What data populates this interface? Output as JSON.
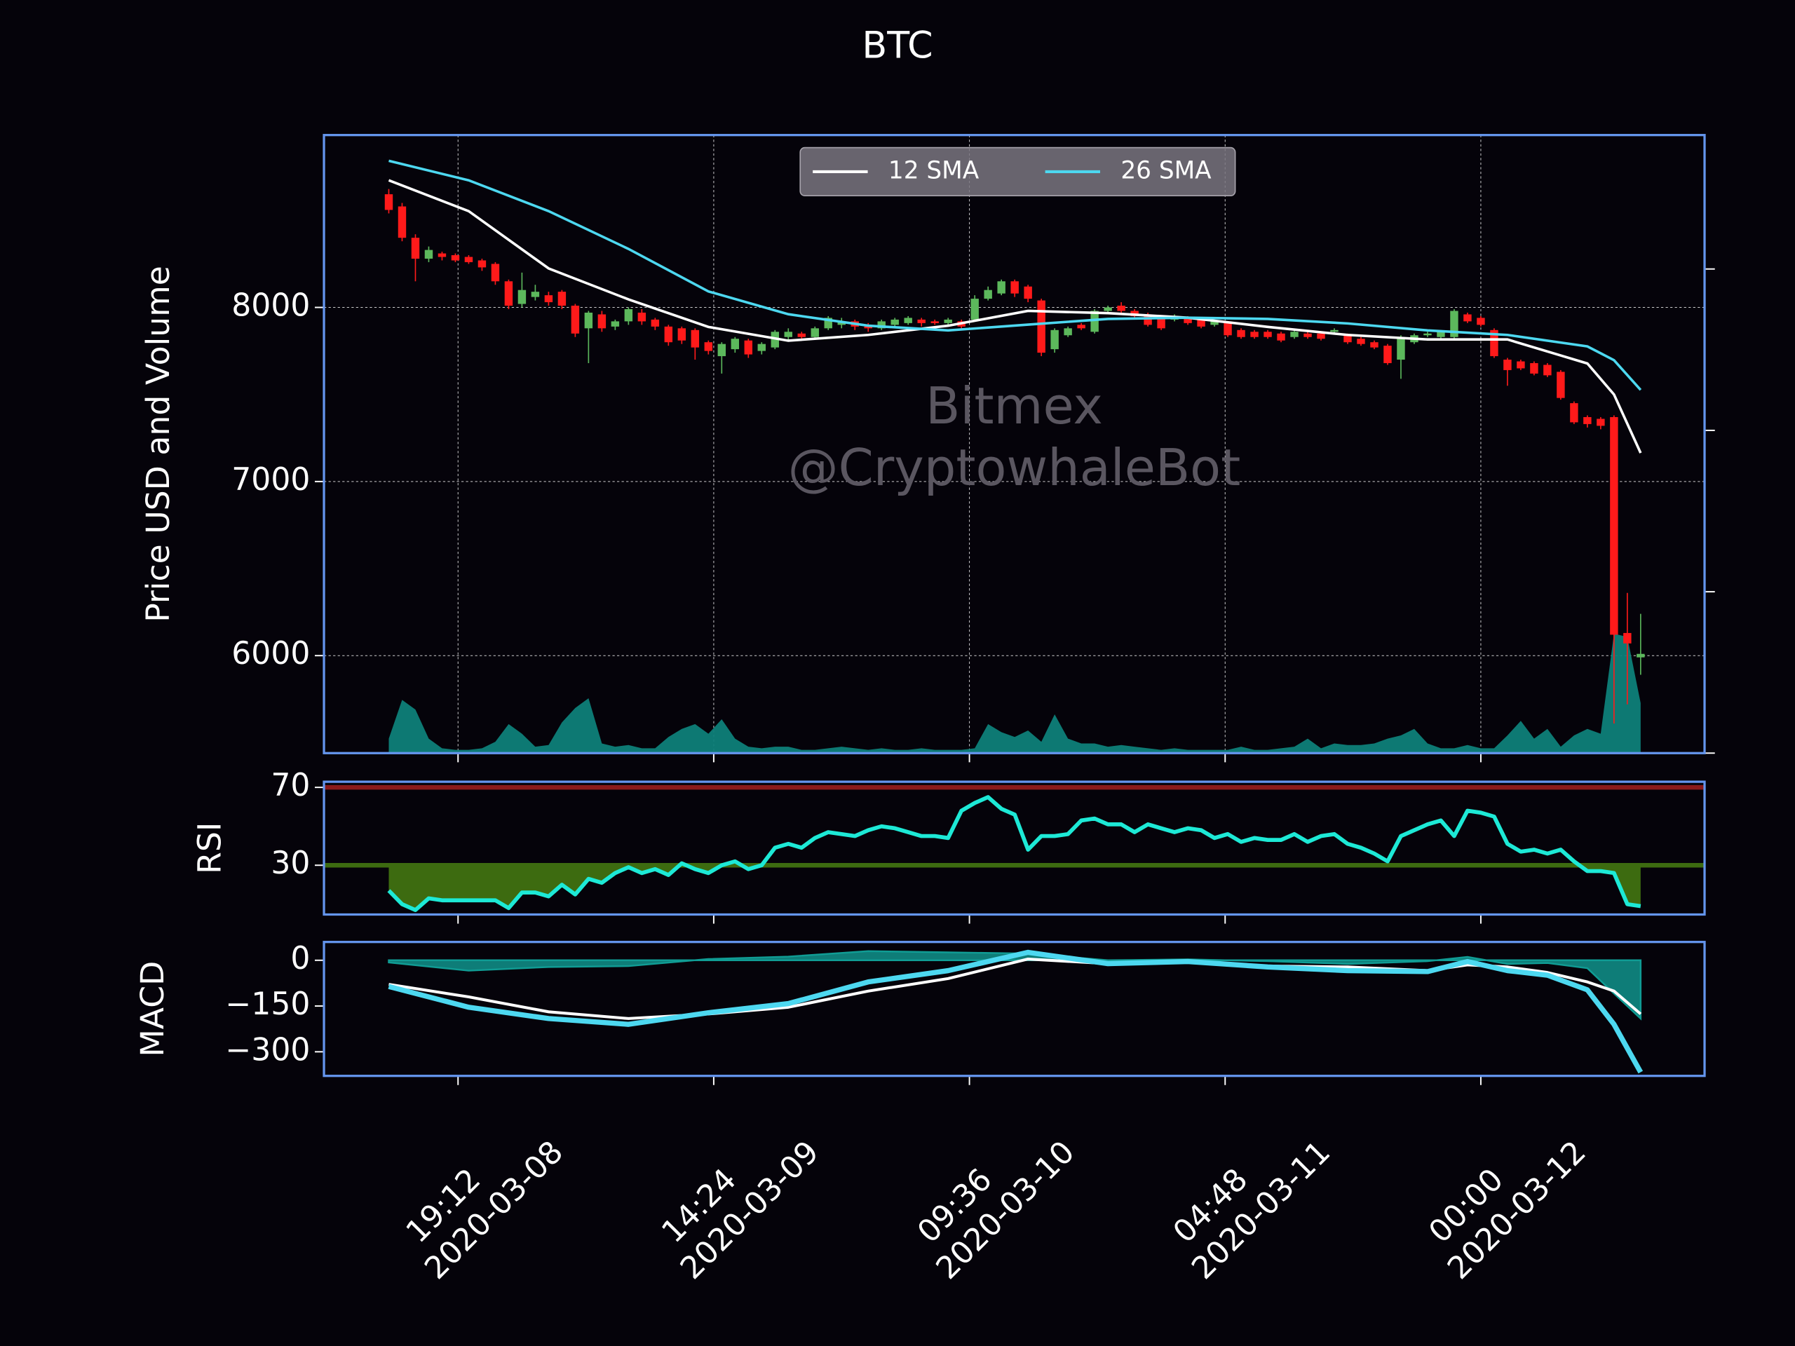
{
  "chart_data": {
    "type": "candlestick",
    "title": "BTC",
    "ylabel": "Price USD and Volume",
    "watermark": [
      "Bitmex",
      "@CryptowhaleBot"
    ],
    "xlim": [
      "2020-03-08 09:08",
      "2020-03-12 16:48"
    ],
    "xticks": [
      {
        "value": "2020-03-08 19:12",
        "label": [
          "19:12",
          "2020-03-08"
        ]
      },
      {
        "value": "2020-03-09 14:24",
        "label": [
          "14:24",
          "2020-03-09"
        ]
      },
      {
        "value": "2020-03-10 09:36",
        "label": [
          "09:36",
          "2020-03-10"
        ]
      },
      {
        "value": "2020-03-11 04:48",
        "label": [
          "04:48",
          "2020-03-11"
        ]
      },
      {
        "value": "2020-03-12 00:00",
        "label": [
          "00:00",
          "2020-03-12"
        ]
      }
    ],
    "ylim": [
      5440,
      8990
    ],
    "yticks": [
      6000,
      7000,
      8000
    ],
    "grid": true,
    "y2lim": [
      0,
      3.83
    ],
    "y2ticks": [
      0,
      1,
      2,
      3
    ],
    "up_color": "#5cb85c",
    "down_color": "#ff1a1a",
    "legend": "upper center",
    "x": [
      "2020-03-08 14:00",
      "2020-03-08 15:00",
      "2020-03-08 16:00",
      "2020-03-08 17:00",
      "2020-03-08 18:00",
      "2020-03-08 19:00",
      "2020-03-08 20:00",
      "2020-03-08 21:00",
      "2020-03-08 22:00",
      "2020-03-08 23:00",
      "2020-03-09 00:00",
      "2020-03-09 01:00",
      "2020-03-09 02:00",
      "2020-03-09 03:00",
      "2020-03-09 04:00",
      "2020-03-09 05:00",
      "2020-03-09 06:00",
      "2020-03-09 07:00",
      "2020-03-09 08:00",
      "2020-03-09 09:00",
      "2020-03-09 10:00",
      "2020-03-09 11:00",
      "2020-03-09 12:00",
      "2020-03-09 13:00",
      "2020-03-09 14:00",
      "2020-03-09 15:00",
      "2020-03-09 16:00",
      "2020-03-09 17:00",
      "2020-03-09 18:00",
      "2020-03-09 19:00",
      "2020-03-09 20:00",
      "2020-03-09 21:00",
      "2020-03-09 22:00",
      "2020-03-09 23:00",
      "2020-03-10 00:00",
      "2020-03-10 01:00",
      "2020-03-10 02:00",
      "2020-03-10 03:00",
      "2020-03-10 04:00",
      "2020-03-10 05:00",
      "2020-03-10 06:00",
      "2020-03-10 07:00",
      "2020-03-10 08:00",
      "2020-03-10 09:00",
      "2020-03-10 10:00",
      "2020-03-10 11:00",
      "2020-03-10 12:00",
      "2020-03-10 13:00",
      "2020-03-10 14:00",
      "2020-03-10 15:00",
      "2020-03-10 16:00",
      "2020-03-10 17:00",
      "2020-03-10 18:00",
      "2020-03-10 19:00",
      "2020-03-10 20:00",
      "2020-03-10 21:00",
      "2020-03-10 22:00",
      "2020-03-10 23:00",
      "2020-03-11 00:00",
      "2020-03-11 01:00",
      "2020-03-11 02:00",
      "2020-03-11 03:00",
      "2020-03-11 04:00",
      "2020-03-11 05:00",
      "2020-03-11 06:00",
      "2020-03-11 07:00",
      "2020-03-11 08:00",
      "2020-03-11 09:00",
      "2020-03-11 10:00",
      "2020-03-11 11:00",
      "2020-03-11 12:00",
      "2020-03-11 13:00",
      "2020-03-11 14:00",
      "2020-03-11 15:00",
      "2020-03-11 16:00",
      "2020-03-11 17:00",
      "2020-03-11 18:00",
      "2020-03-11 19:00",
      "2020-03-11 20:00",
      "2020-03-11 21:00",
      "2020-03-11 22:00",
      "2020-03-11 23:00",
      "2020-03-12 00:00",
      "2020-03-12 01:00",
      "2020-03-12 02:00",
      "2020-03-12 03:00",
      "2020-03-12 04:00",
      "2020-03-12 05:00",
      "2020-03-12 06:00",
      "2020-03-12 07:00",
      "2020-03-12 08:00",
      "2020-03-12 09:00",
      "2020-03-12 10:00",
      "2020-03-12 11:00",
      "2020-03-12 12:00"
    ],
    "open": [
      8650,
      8580,
      8400,
      8280,
      8310,
      8300,
      8290,
      8270,
      8250,
      8150,
      8020,
      8060,
      8070,
      8090,
      8010,
      7880,
      7960,
      7890,
      7920,
      7970,
      7930,
      7890,
      7880,
      7870,
      7800,
      7720,
      7760,
      7810,
      7750,
      7770,
      7830,
      7850,
      7830,
      7880,
      7900,
      7920,
      7900,
      7880,
      7900,
      7910,
      7930,
      7920,
      7910,
      7920,
      7930,
      8050,
      8080,
      8150,
      8120,
      8040,
      7760,
      7840,
      7900,
      7860,
      7980,
      8010,
      7980,
      7960,
      7940,
      7930,
      7940,
      7930,
      7900,
      7910,
      7870,
      7860,
      7860,
      7850,
      7830,
      7850,
      7850,
      7860,
      7840,
      7820,
      7800,
      7780,
      7700,
      7800,
      7840,
      7830,
      7830,
      7960,
      7940,
      7870,
      7700,
      7690,
      7680,
      7670,
      7630,
      7450,
      7370,
      7360,
      7370,
      6130,
      5990
    ],
    "high": [
      8680,
      8600,
      8420,
      8350,
      8320,
      8310,
      8300,
      8280,
      8260,
      8160,
      8200,
      8130,
      8090,
      8100,
      8020,
      7980,
      7980,
      7930,
      8000,
      7990,
      7940,
      7900,
      7890,
      7880,
      7810,
      7800,
      7830,
      7820,
      7800,
      7870,
      7880,
      7860,
      7890,
      7950,
      7940,
      7930,
      7910,
      7930,
      7940,
      7950,
      7940,
      7930,
      7940,
      7930,
      8070,
      8120,
      8160,
      8160,
      8130,
      8050,
      7880,
      7890,
      7910,
      7990,
      8010,
      8030,
      7990,
      7970,
      7950,
      7960,
      7950,
      7940,
      7930,
      7920,
      7880,
      7870,
      7870,
      7860,
      7870,
      7860,
      7860,
      7880,
      7850,
      7830,
      7810,
      7790,
      7840,
      7850,
      7860,
      7870,
      7990,
      7970,
      7950,
      7880,
      7710,
      7700,
      7690,
      7680,
      7640,
      7460,
      7380,
      7370,
      7380,
      6360,
      6240
    ],
    "low": [
      8540,
      8380,
      8150,
      8260,
      8270,
      8260,
      8250,
      8210,
      8130,
      7990,
      8000,
      8040,
      8010,
      7990,
      7830,
      7680,
      7860,
      7870,
      7900,
      7900,
      7870,
      7780,
      7790,
      7700,
      7730,
      7620,
      7740,
      7710,
      7730,
      7760,
      7810,
      7810,
      7820,
      7870,
      7880,
      7870,
      7860,
      7870,
      7890,
      7900,
      7890,
      7900,
      7900,
      7870,
      7920,
      8040,
      8070,
      8060,
      8030,
      7720,
      7740,
      7830,
      7870,
      7850,
      7970,
      7970,
      7940,
      7890,
      7870,
      7920,
      7900,
      7880,
      7890,
      7830,
      7820,
      7820,
      7820,
      7800,
      7820,
      7820,
      7810,
      7850,
      7790,
      7780,
      7760,
      7670,
      7590,
      7790,
      7830,
      7820,
      7820,
      7910,
      7890,
      7710,
      7550,
      7640,
      7610,
      7600,
      7470,
      7330,
      7310,
      7300,
      5610,
      5720,
      5890
    ],
    "close": [
      8560,
      8400,
      8280,
      8330,
      8290,
      8270,
      8260,
      8230,
      8150,
      8010,
      8100,
      8090,
      8030,
      8010,
      7850,
      7970,
      7880,
      7920,
      7990,
      7920,
      7890,
      7800,
      7810,
      7770,
      7750,
      7790,
      7820,
      7730,
      7790,
      7860,
      7860,
      7830,
      7880,
      7940,
      7920,
      7890,
      7880,
      7920,
      7930,
      7940,
      7910,
      7910,
      7930,
      7890,
      8050,
      8100,
      8150,
      8080,
      8050,
      7740,
      7870,
      7880,
      7880,
      7980,
      8000,
      7980,
      7950,
      7900,
      7880,
      7950,
      7910,
      7890,
      7920,
      7840,
      7830,
      7830,
      7830,
      7810,
      7860,
      7830,
      7820,
      7870,
      7800,
      7790,
      7770,
      7680,
      7830,
      7840,
      7850,
      7860,
      7980,
      7920,
      7900,
      7720,
      7640,
      7650,
      7620,
      7610,
      7480,
      7340,
      7330,
      7320,
      6120,
      6070,
      6010
    ],
    "series": [
      {
        "name": "12 SMA",
        "color": "#ffffff",
        "x": [
          "2020-03-08 14:00",
          "2020-03-08 20:00",
          "2020-03-09 02:00",
          "2020-03-09 08:00",
          "2020-03-09 14:00",
          "2020-03-09 20:00",
          "2020-03-10 02:00",
          "2020-03-10 08:00",
          "2020-03-10 14:00",
          "2020-03-10 20:00",
          "2020-03-11 02:00",
          "2020-03-11 08:00",
          "2020-03-11 14:00",
          "2020-03-11 20:00",
          "2020-03-12 02:00",
          "2020-03-12 08:00",
          "2020-03-12 10:00",
          "2020-03-12 12:00"
        ],
        "values": [
          8730,
          8553,
          8224,
          8046,
          7888,
          7809,
          7842,
          7895,
          7980,
          7967,
          7941,
          7888,
          7842,
          7816,
          7816,
          7678,
          7500,
          7164
        ]
      },
      {
        "name": "26 SMA",
        "color": "#4dd8f0",
        "x": [
          "2020-03-08 14:00",
          "2020-03-08 20:00",
          "2020-03-09 02:00",
          "2020-03-09 08:00",
          "2020-03-09 14:00",
          "2020-03-09 20:00",
          "2020-03-10 02:00",
          "2020-03-10 08:00",
          "2020-03-10 14:00",
          "2020-03-10 20:00",
          "2020-03-11 02:00",
          "2020-03-11 08:00",
          "2020-03-11 14:00",
          "2020-03-11 20:00",
          "2020-03-12 02:00",
          "2020-03-12 08:00",
          "2020-03-12 10:00",
          "2020-03-12 12:00"
        ],
        "values": [
          8842,
          8730,
          8553,
          8336,
          8092,
          7961,
          7895,
          7868,
          7901,
          7934,
          7941,
          7934,
          7908,
          7868,
          7842,
          7776,
          7697,
          7526
        ]
      }
    ],
    "volume": {
      "color": "#0e8079",
      "axis": "y2",
      "values": [
        0.09,
        0.33,
        0.27,
        0.09,
        0.03,
        0.02,
        0.02,
        0.03,
        0.07,
        0.18,
        0.12,
        0.04,
        0.05,
        0.19,
        0.28,
        0.34,
        0.06,
        0.04,
        0.05,
        0.03,
        0.03,
        0.1,
        0.15,
        0.18,
        0.12,
        0.21,
        0.09,
        0.04,
        0.03,
        0.04,
        0.04,
        0.02,
        0.02,
        0.03,
        0.04,
        0.03,
        0.02,
        0.03,
        0.02,
        0.02,
        0.03,
        0.02,
        0.02,
        0.02,
        0.03,
        0.18,
        0.13,
        0.1,
        0.14,
        0.07,
        0.24,
        0.09,
        0.06,
        0.06,
        0.04,
        0.05,
        0.04,
        0.03,
        0.02,
        0.03,
        0.02,
        0.02,
        0.02,
        0.02,
        0.04,
        0.02,
        0.02,
        0.03,
        0.04,
        0.09,
        0.03,
        0.06,
        0.05,
        0.05,
        0.06,
        0.09,
        0.11,
        0.15,
        0.06,
        0.03,
        0.03,
        0.05,
        0.03,
        0.03,
        0.11,
        0.2,
        0.09,
        0.15,
        0.04,
        0.11,
        0.15,
        0.12,
        0.74,
        0.72,
        0.31
      ]
    },
    "panels": [
      {
        "type": "line",
        "ylabel": "RSI",
        "ylim": [
          4.7,
          72.9
        ],
        "yticks": [
          30,
          70
        ],
        "levels": [
          {
            "value": 70,
            "color": "#8b1a1a"
          },
          {
            "value": 30,
            "color": "#3d6b10",
            "fill": "#3d6b10"
          }
        ],
        "series": [
          {
            "color": "#1de9d6",
            "values": [
              17,
              10,
              7,
              13,
              12,
              12,
              12,
              12,
              12,
              8,
              16,
              16,
              14,
              20,
              15,
              23,
              21,
              26,
              29,
              26,
              28,
              25,
              31,
              28,
              26,
              30,
              32,
              28,
              30,
              39,
              41,
              39,
              44,
              47,
              46,
              45,
              48,
              50,
              49,
              47,
              45,
              45,
              44,
              58,
              62,
              65,
              59,
              56,
              38,
              45,
              45,
              46,
              53,
              54,
              51,
              51,
              47,
              51,
              49,
              47,
              49,
              48,
              44,
              46,
              42,
              44,
              43,
              43,
              46,
              42,
              45,
              46,
              41,
              39,
              36,
              32,
              45,
              48,
              51,
              53,
              45,
              58,
              57,
              55,
              41,
              37,
              38,
              36,
              38,
              32,
              27,
              27,
              26,
              10,
              9
            ]
          }
        ]
      },
      {
        "type": "line",
        "ylabel": "MACD",
        "ylim": [
          -379,
          60
        ],
        "yticks": [
          {
            "value": -300,
            "label": "−300"
          },
          {
            "value": -150,
            "label": "−150"
          },
          0
        ],
        "x": [
          "2020-03-08 14:00",
          "2020-03-08 20:00",
          "2020-03-09 02:00",
          "2020-03-09 08:00",
          "2020-03-09 14:00",
          "2020-03-09 20:00",
          "2020-03-10 02:00",
          "2020-03-10 08:00",
          "2020-03-10 14:00",
          "2020-03-10 20:00",
          "2020-03-11 02:00",
          "2020-03-11 08:00",
          "2020-03-11 14:00",
          "2020-03-11 20:00",
          "2020-03-11 23:00",
          "2020-03-12 02:00",
          "2020-03-12 05:00",
          "2020-03-12 08:00",
          "2020-03-12 10:00",
          "2020-03-12 12:00"
        ],
        "histogram": {
          "color": "#109c94",
          "values": [
            -7,
            -34,
            -22,
            -19,
            4,
            12,
            30,
            26,
            22,
            0,
            3,
            -3,
            -12,
            -3,
            11,
            -12,
            -9,
            -26,
            -109,
            -191
          ]
        },
        "series": [
          {
            "color": "#ffffff",
            "width": 2.5,
            "values": [
              -79,
              -120,
              -169,
              -191,
              -176,
              -154,
              -101,
              -60,
              4,
              -11,
              -7,
              -19,
              -22,
              -34,
              -15,
              -22,
              -40,
              -71,
              -101,
              -176
            ]
          },
          {
            "color": "#4dd8f0",
            "width": 4.5,
            "values": [
              -86,
              -154,
              -191,
              -210,
              -172,
              -142,
              -71,
              -34,
              26,
              -11,
              -4,
              -22,
              -34,
              -37,
              -4,
              -34,
              -49,
              -97,
              -210,
              -367
            ]
          }
        ]
      }
    ]
  }
}
